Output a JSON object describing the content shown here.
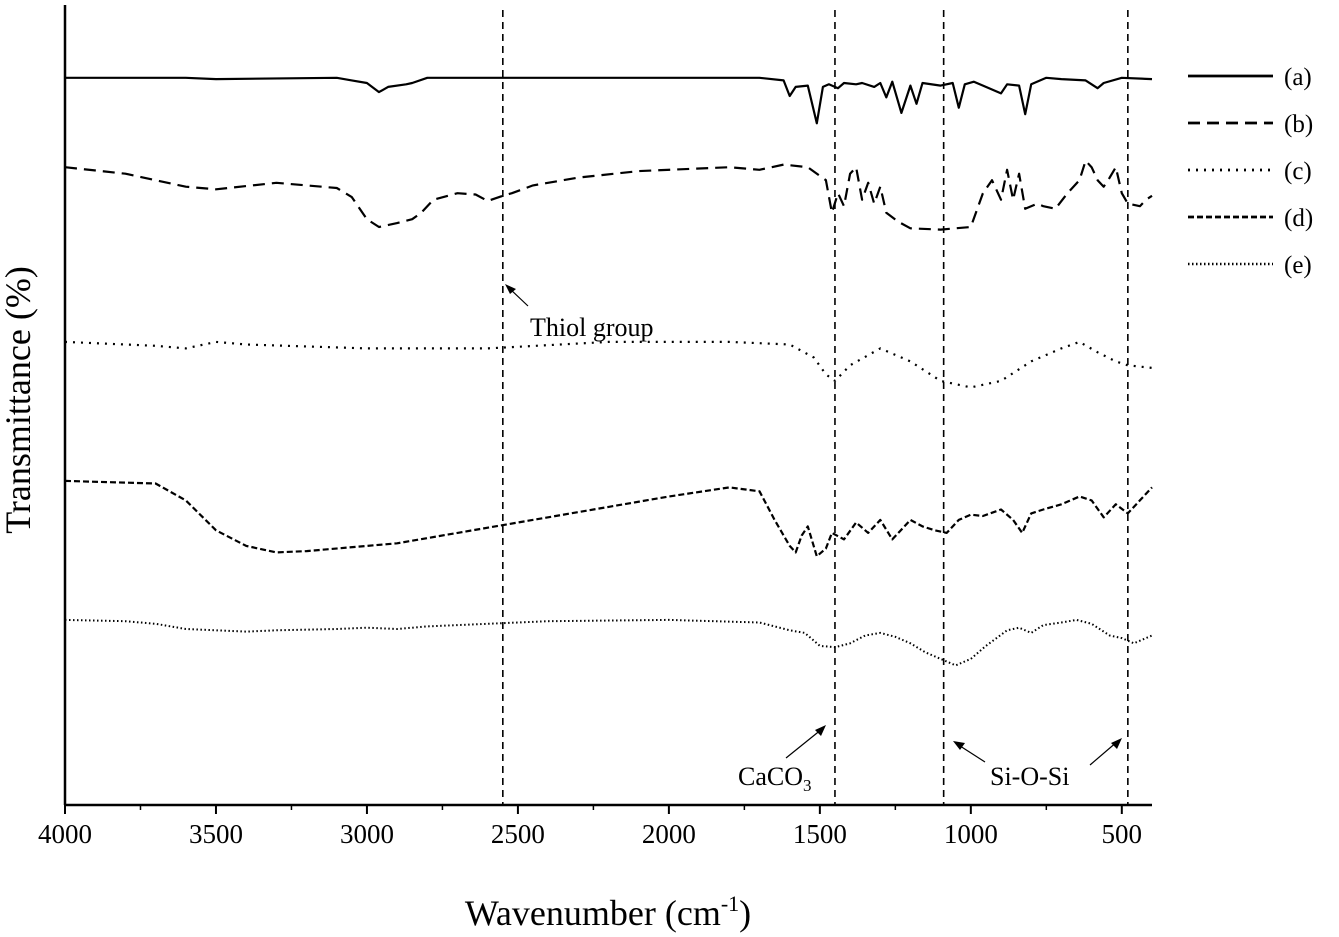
{
  "chart_data": {
    "type": "line",
    "title": "",
    "xlabel": "Wavenumber (cm",
    "xlabel_sup": "-1",
    "xlabel_tail": ")",
    "ylabel": "Transmittance (%)",
    "xlim": [
      4000,
      400
    ],
    "x_reversed": true,
    "x_ticks": [
      4000,
      3500,
      3000,
      2500,
      2000,
      1500,
      1000,
      500
    ],
    "x_tick_labels": [
      "4000",
      "3500",
      "3000",
      "2500",
      "2000",
      "1500",
      "1000",
      "500"
    ],
    "y_ticks_shown": false,
    "grid": false,
    "legend_position": "top-right outside",
    "reference_lines": [
      2550,
      1450,
      1090,
      480
    ],
    "series": [
      {
        "name": "(a)",
        "style": "solid",
        "baseline": 0.04,
        "points": [
          [
            4000,
            0.0
          ],
          [
            3600,
            0.0
          ],
          [
            3500,
            0.01
          ],
          [
            3100,
            0.0
          ],
          [
            3050,
            0.02
          ],
          [
            3000,
            0.04
          ],
          [
            2960,
            0.11
          ],
          [
            2930,
            0.07
          ],
          [
            2870,
            0.05
          ],
          [
            2850,
            0.04
          ],
          [
            2800,
            0.0
          ],
          [
            1700,
            0.0
          ],
          [
            1620,
            0.02
          ],
          [
            1600,
            0.14
          ],
          [
            1580,
            0.07
          ],
          [
            1540,
            0.06
          ],
          [
            1510,
            0.35
          ],
          [
            1490,
            0.07
          ],
          [
            1470,
            0.05
          ],
          [
            1440,
            0.08
          ],
          [
            1420,
            0.04
          ],
          [
            1380,
            0.05
          ],
          [
            1360,
            0.04
          ],
          [
            1320,
            0.07
          ],
          [
            1300,
            0.04
          ],
          [
            1280,
            0.15
          ],
          [
            1260,
            0.03
          ],
          [
            1230,
            0.27
          ],
          [
            1200,
            0.06
          ],
          [
            1180,
            0.2
          ],
          [
            1160,
            0.04
          ],
          [
            1100,
            0.06
          ],
          [
            1060,
            0.04
          ],
          [
            1040,
            0.23
          ],
          [
            1020,
            0.05
          ],
          [
            990,
            0.03
          ],
          [
            950,
            0.07
          ],
          [
            900,
            0.12
          ],
          [
            880,
            0.05
          ],
          [
            840,
            0.06
          ],
          [
            820,
            0.28
          ],
          [
            800,
            0.05
          ],
          [
            750,
            0.0
          ],
          [
            700,
            0.01
          ],
          [
            620,
            0.02
          ],
          [
            580,
            0.08
          ],
          [
            560,
            0.04
          ],
          [
            500,
            0.0
          ],
          [
            400,
            0.01
          ]
        ]
      },
      {
        "name": "(b)",
        "style": "dashed",
        "baseline": 0.15,
        "points": [
          [
            4000,
            0.1
          ],
          [
            3800,
            0.15
          ],
          [
            3600,
            0.25
          ],
          [
            3500,
            0.27
          ],
          [
            3300,
            0.22
          ],
          [
            3100,
            0.26
          ],
          [
            3050,
            0.33
          ],
          [
            3000,
            0.5
          ],
          [
            2960,
            0.56
          ],
          [
            2900,
            0.53
          ],
          [
            2850,
            0.5
          ],
          [
            2820,
            0.45
          ],
          [
            2780,
            0.35
          ],
          [
            2700,
            0.3
          ],
          [
            2640,
            0.31
          ],
          [
            2600,
            0.36
          ],
          [
            2550,
            0.32
          ],
          [
            2520,
            0.3
          ],
          [
            2450,
            0.24
          ],
          [
            2300,
            0.18
          ],
          [
            2100,
            0.13
          ],
          [
            1900,
            0.11
          ],
          [
            1800,
            0.1
          ],
          [
            1700,
            0.12
          ],
          [
            1620,
            0.08
          ],
          [
            1540,
            0.1
          ],
          [
            1480,
            0.2
          ],
          [
            1460,
            0.45
          ],
          [
            1440,
            0.3
          ],
          [
            1420,
            0.4
          ],
          [
            1400,
            0.15
          ],
          [
            1380,
            0.1
          ],
          [
            1360,
            0.35
          ],
          [
            1340,
            0.22
          ],
          [
            1320,
            0.38
          ],
          [
            1300,
            0.25
          ],
          [
            1280,
            0.45
          ],
          [
            1240,
            0.52
          ],
          [
            1200,
            0.57
          ],
          [
            1100,
            0.58
          ],
          [
            1000,
            0.56
          ],
          [
            960,
            0.3
          ],
          [
            930,
            0.2
          ],
          [
            900,
            0.35
          ],
          [
            880,
            0.12
          ],
          [
            860,
            0.35
          ],
          [
            840,
            0.15
          ],
          [
            820,
            0.42
          ],
          [
            780,
            0.38
          ],
          [
            760,
            0.4
          ],
          [
            720,
            0.42
          ],
          [
            680,
            0.3
          ],
          [
            640,
            0.2
          ],
          [
            620,
            0.05
          ],
          [
            600,
            0.1
          ],
          [
            580,
            0.2
          ],
          [
            560,
            0.25
          ],
          [
            540,
            0.18
          ],
          [
            520,
            0.1
          ],
          [
            500,
            0.3
          ],
          [
            480,
            0.38
          ],
          [
            440,
            0.4
          ],
          [
            420,
            0.35
          ],
          [
            400,
            0.32
          ]
        ]
      },
      {
        "name": "(c)",
        "style": "dotted",
        "baseline": 0.42,
        "points": [
          [
            4000,
            0.0
          ],
          [
            3800,
            0.02
          ],
          [
            3700,
            0.03
          ],
          [
            3600,
            0.05
          ],
          [
            3500,
            0.0
          ],
          [
            3400,
            0.02
          ],
          [
            3000,
            0.05
          ],
          [
            2600,
            0.05
          ],
          [
            2200,
            0.0
          ],
          [
            1800,
            0.0
          ],
          [
            1600,
            0.02
          ],
          [
            1520,
            0.12
          ],
          [
            1480,
            0.25
          ],
          [
            1450,
            0.3
          ],
          [
            1400,
            0.18
          ],
          [
            1300,
            0.05
          ],
          [
            1200,
            0.15
          ],
          [
            1100,
            0.3
          ],
          [
            1000,
            0.35
          ],
          [
            900,
            0.3
          ],
          [
            800,
            0.15
          ],
          [
            700,
            0.05
          ],
          [
            640,
            0.0
          ],
          [
            580,
            0.08
          ],
          [
            520,
            0.15
          ],
          [
            480,
            0.18
          ],
          [
            400,
            0.2
          ]
        ]
      },
      {
        "name": "(d)",
        "style": "short-dashed",
        "baseline": 0.62,
        "points": [
          [
            4000,
            0.0
          ],
          [
            3700,
            0.02
          ],
          [
            3600,
            0.15
          ],
          [
            3500,
            0.38
          ],
          [
            3400,
            0.5
          ],
          [
            3300,
            0.55
          ],
          [
            3200,
            0.54
          ],
          [
            3000,
            0.5
          ],
          [
            2900,
            0.48
          ],
          [
            2700,
            0.4
          ],
          [
            2500,
            0.32
          ],
          [
            2200,
            0.2
          ],
          [
            2000,
            0.12
          ],
          [
            1800,
            0.05
          ],
          [
            1700,
            0.08
          ],
          [
            1650,
            0.3
          ],
          [
            1600,
            0.5
          ],
          [
            1580,
            0.55
          ],
          [
            1560,
            0.42
          ],
          [
            1540,
            0.35
          ],
          [
            1510,
            0.58
          ],
          [
            1480,
            0.52
          ],
          [
            1460,
            0.4
          ],
          [
            1420,
            0.45
          ],
          [
            1380,
            0.32
          ],
          [
            1340,
            0.4
          ],
          [
            1300,
            0.3
          ],
          [
            1260,
            0.45
          ],
          [
            1220,
            0.35
          ],
          [
            1200,
            0.3
          ],
          [
            1160,
            0.35
          ],
          [
            1120,
            0.38
          ],
          [
            1080,
            0.4
          ],
          [
            1040,
            0.3
          ],
          [
            1000,
            0.26
          ],
          [
            960,
            0.27
          ],
          [
            900,
            0.22
          ],
          [
            860,
            0.3
          ],
          [
            830,
            0.4
          ],
          [
            800,
            0.25
          ],
          [
            760,
            0.22
          ],
          [
            700,
            0.18
          ],
          [
            640,
            0.12
          ],
          [
            600,
            0.15
          ],
          [
            560,
            0.28
          ],
          [
            520,
            0.18
          ],
          [
            480,
            0.25
          ],
          [
            440,
            0.15
          ],
          [
            400,
            0.05
          ]
        ]
      },
      {
        "name": "(e)",
        "style": "fine-dotted",
        "baseline": 0.82,
        "points": [
          [
            4000,
            0.0
          ],
          [
            3800,
            0.01
          ],
          [
            3700,
            0.03
          ],
          [
            3600,
            0.07
          ],
          [
            3400,
            0.09
          ],
          [
            3300,
            0.08
          ],
          [
            3100,
            0.07
          ],
          [
            3000,
            0.06
          ],
          [
            2900,
            0.07
          ],
          [
            2800,
            0.05
          ],
          [
            2600,
            0.03
          ],
          [
            2400,
            0.01
          ],
          [
            2000,
            0.0
          ],
          [
            1700,
            0.02
          ],
          [
            1600,
            0.08
          ],
          [
            1550,
            0.1
          ],
          [
            1500,
            0.2
          ],
          [
            1450,
            0.21
          ],
          [
            1400,
            0.18
          ],
          [
            1350,
            0.12
          ],
          [
            1300,
            0.1
          ],
          [
            1250,
            0.13
          ],
          [
            1200,
            0.18
          ],
          [
            1150,
            0.25
          ],
          [
            1100,
            0.3
          ],
          [
            1050,
            0.35
          ],
          [
            1000,
            0.3
          ],
          [
            950,
            0.2
          ],
          [
            880,
            0.08
          ],
          [
            840,
            0.06
          ],
          [
            800,
            0.1
          ],
          [
            760,
            0.04
          ],
          [
            700,
            0.02
          ],
          [
            650,
            0.0
          ],
          [
            600,
            0.03
          ],
          [
            540,
            0.12
          ],
          [
            500,
            0.14
          ],
          [
            460,
            0.18
          ],
          [
            400,
            0.12
          ]
        ]
      }
    ],
    "annotations": [
      {
        "text": "Thiol group",
        "x": 2550
      },
      {
        "text": "CaCO",
        "sub": "3",
        "x": 1450
      },
      {
        "text": "Si-O-Si",
        "x": 1090
      }
    ]
  }
}
